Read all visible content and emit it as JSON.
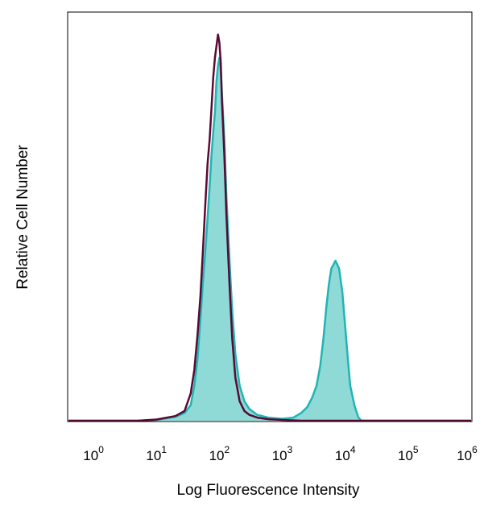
{
  "chart_data": {
    "type": "area",
    "title": "",
    "xlabel": "Log Fluorescence Intensity",
    "ylabel": "Relative Cell Number",
    "x_scale": "log",
    "xlim": [
      0.4,
      1000000
    ],
    "ylim": [
      0,
      1
    ],
    "grid": false,
    "legend": "none",
    "x_ticks": [
      {
        "value": 1,
        "base": "10",
        "exp": "0"
      },
      {
        "value": 10,
        "base": "10",
        "exp": "1"
      },
      {
        "value": 100,
        "base": "10",
        "exp": "2"
      },
      {
        "value": 1000,
        "base": "10",
        "exp": "3"
      },
      {
        "value": 10000,
        "base": "10",
        "exp": "4"
      },
      {
        "value": 100000,
        "base": "10",
        "exp": "5"
      },
      {
        "value": 1000000,
        "base": "10",
        "exp": "6"
      }
    ],
    "series": [
      {
        "color": "#22b4b4",
        "fill": "#8fd9d6",
        "style": "filled",
        "points": [
          [
            0.4,
            0.0
          ],
          [
            5,
            0.0
          ],
          [
            10,
            0.002
          ],
          [
            20,
            0.01
          ],
          [
            28,
            0.02
          ],
          [
            35,
            0.04
          ],
          [
            40,
            0.09
          ],
          [
            45,
            0.16
          ],
          [
            50,
            0.26
          ],
          [
            55,
            0.36
          ],
          [
            60,
            0.44
          ],
          [
            65,
            0.52
          ],
          [
            70,
            0.6
          ],
          [
            75,
            0.68
          ],
          [
            80,
            0.74
          ],
          [
            85,
            0.79
          ],
          [
            90,
            0.87
          ],
          [
            95,
            0.91
          ],
          [
            100,
            0.93
          ],
          [
            105,
            0.9
          ],
          [
            110,
            0.84
          ],
          [
            120,
            0.72
          ],
          [
            130,
            0.57
          ],
          [
            145,
            0.41
          ],
          [
            160,
            0.28
          ],
          [
            180,
            0.17
          ],
          [
            210,
            0.09
          ],
          [
            250,
            0.05
          ],
          [
            300,
            0.03
          ],
          [
            400,
            0.015
          ],
          [
            600,
            0.008
          ],
          [
            1000,
            0.005
          ],
          [
            1500,
            0.008
          ],
          [
            2000,
            0.02
          ],
          [
            2500,
            0.035
          ],
          [
            3000,
            0.06
          ],
          [
            3500,
            0.09
          ],
          [
            4000,
            0.14
          ],
          [
            4500,
            0.21
          ],
          [
            5000,
            0.29
          ],
          [
            5500,
            0.35
          ],
          [
            6000,
            0.39
          ],
          [
            6500,
            0.4
          ],
          [
            7000,
            0.41
          ],
          [
            7500,
            0.4
          ],
          [
            8000,
            0.39
          ],
          [
            9000,
            0.33
          ],
          [
            10000,
            0.24
          ],
          [
            11000,
            0.16
          ],
          [
            12000,
            0.09
          ],
          [
            14000,
            0.04
          ],
          [
            16000,
            0.01
          ],
          [
            18000,
            0.0
          ],
          [
            100000,
            0.0
          ],
          [
            1000000,
            0.0
          ]
        ]
      },
      {
        "color": "#5a0a32",
        "fill": "none",
        "style": "line",
        "points": [
          [
            0.4,
            0.0
          ],
          [
            5,
            0.0
          ],
          [
            10,
            0.003
          ],
          [
            20,
            0.012
          ],
          [
            28,
            0.025
          ],
          [
            35,
            0.07
          ],
          [
            40,
            0.13
          ],
          [
            45,
            0.22
          ],
          [
            50,
            0.32
          ],
          [
            55,
            0.44
          ],
          [
            60,
            0.56
          ],
          [
            65,
            0.66
          ],
          [
            70,
            0.72
          ],
          [
            75,
            0.8
          ],
          [
            80,
            0.88
          ],
          [
            85,
            0.93
          ],
          [
            90,
            0.96
          ],
          [
            95,
            0.99
          ],
          [
            100,
            0.97
          ],
          [
            105,
            0.92
          ],
          [
            110,
            0.82
          ],
          [
            120,
            0.68
          ],
          [
            130,
            0.52
          ],
          [
            145,
            0.35
          ],
          [
            160,
            0.21
          ],
          [
            180,
            0.11
          ],
          [
            210,
            0.05
          ],
          [
            250,
            0.025
          ],
          [
            300,
            0.015
          ],
          [
            400,
            0.008
          ],
          [
            600,
            0.004
          ],
          [
            1000,
            0.002
          ],
          [
            2000,
            0.0
          ],
          [
            1000000,
            0.0
          ]
        ]
      }
    ]
  }
}
